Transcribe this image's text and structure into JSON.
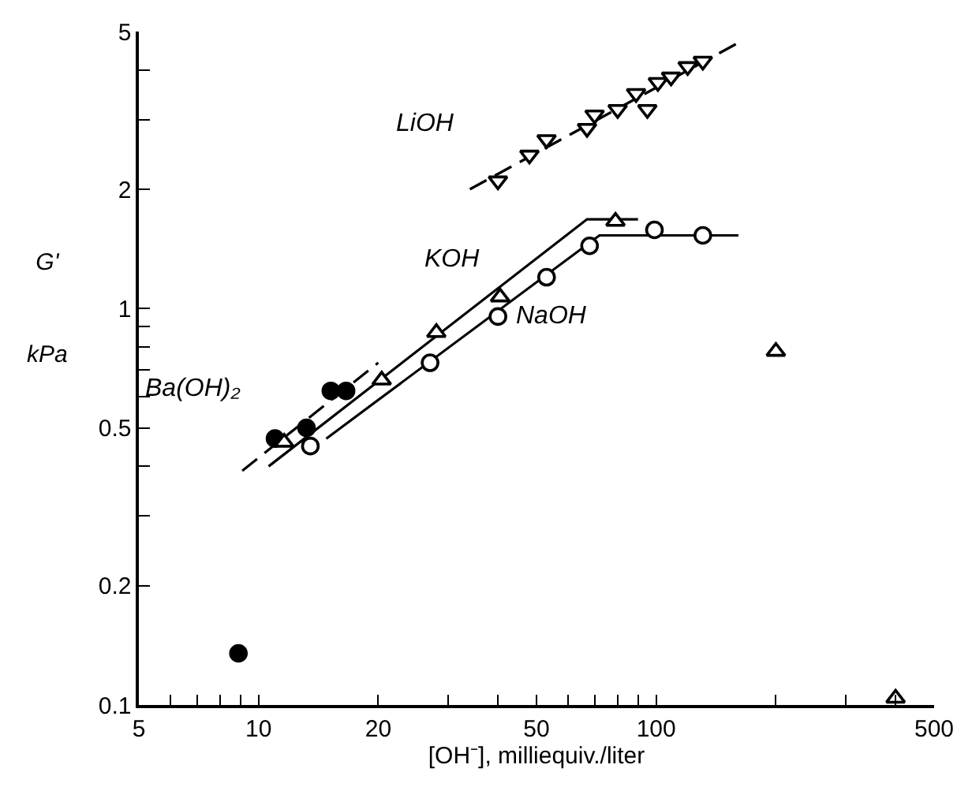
{
  "chart_data": {
    "type": "scatter",
    "xlabel": "[OH⁻], milliequiv./liter",
    "ylabel": "G' kPa",
    "log": "xy",
    "legend": false,
    "xlim": [
      5,
      500
    ],
    "ylim": [
      0.1,
      5
    ],
    "xticks": [
      5,
      {
        "value": 6,
        "label": null
      },
      {
        "value": 7,
        "label": null
      },
      {
        "value": 8,
        "label": null
      },
      {
        "value": 9,
        "label": null
      },
      10,
      20,
      {
        "value": 30,
        "label": null
      },
      {
        "value": 40,
        "label": null
      },
      50,
      {
        "value": 60,
        "label": null
      },
      {
        "value": 70,
        "label": null
      },
      {
        "value": 80,
        "label": null
      },
      {
        "value": 90,
        "label": null
      },
      100,
      {
        "value": 200,
        "label": null
      },
      {
        "value": 300,
        "label": null
      },
      {
        "value": 400,
        "label": null
      },
      500
    ],
    "yticks": [
      0.1,
      0.2,
      {
        "value": 0.3,
        "label": null
      },
      {
        "value": 0.4,
        "label": null
      },
      0.5,
      {
        "value": 0.6,
        "label": null
      },
      {
        "value": 0.7,
        "label": null
      },
      {
        "value": 0.8,
        "label": null
      },
      {
        "value": 0.9,
        "label": null
      },
      1,
      2,
      {
        "value": 3,
        "label": null
      },
      {
        "value": 4,
        "label": null
      },
      5
    ],
    "series": [
      {
        "name": "LiOH",
        "marker": "triangle-down-open",
        "color": "#000000",
        "x": [
          40,
          48,
          53,
          67,
          70,
          80,
          89,
          95,
          101,
          109,
          120,
          131
        ],
        "values": [
          2.1,
          2.44,
          2.67,
          2.85,
          3.08,
          3.18,
          3.49,
          3.18,
          3.72,
          3.84,
          4.08,
          4.21
        ]
      },
      {
        "name": "KOH",
        "marker": "triangle-up-open",
        "color": "#000000",
        "x": [
          11.6,
          20.4,
          28,
          40.5,
          79,
          200,
          400
        ],
        "values": [
          0.46,
          0.66,
          0.87,
          1.07,
          1.66,
          0.78,
          0.104
        ]
      },
      {
        "name": "NaOH",
        "marker": "circle-open",
        "color": "#000000",
        "x": [
          13.5,
          27,
          40,
          53,
          68,
          99,
          131
        ],
        "values": [
          0.45,
          0.73,
          0.955,
          1.2,
          1.44,
          1.58,
          1.53
        ]
      },
      {
        "name": "Ba(OH)₂",
        "marker": "circle",
        "color": "#000000",
        "x": [
          8.9,
          11,
          13.2,
          15.2,
          16.6
        ],
        "values": [
          0.135,
          0.47,
          0.5,
          0.62,
          0.62
        ]
      },
      {
        "type": "line",
        "line_style": "dashed",
        "color": "#000000",
        "x": [
          34,
          160
        ],
        "values": [
          2.0,
          4.67
        ]
      },
      {
        "type": "line",
        "line_style": "solid",
        "color": "#000000",
        "x": [
          10.6,
          67,
          90
        ],
        "values": [
          0.4,
          1.68,
          1.68
        ]
      },
      {
        "type": "line",
        "line_style": "solid",
        "color": "#000000",
        "x": [
          14.8,
          72,
          161
        ],
        "values": [
          0.47,
          1.53,
          1.53
        ]
      },
      {
        "type": "line",
        "line_style": "dashed",
        "color": "#000000",
        "x": [
          9.1,
          20
        ],
        "values": [
          0.39,
          0.73
        ]
      }
    ]
  }
}
